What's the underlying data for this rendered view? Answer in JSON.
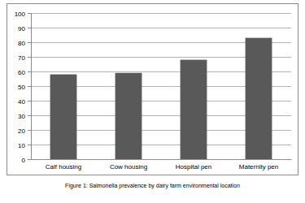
{
  "chart_data": {
    "type": "bar",
    "title": "Figure 1: Salmonella prevalence by dairy farm environmental location",
    "categories": [
      "Calf housing",
      "Cow housing",
      "Hospital pen",
      "Maternity pen"
    ],
    "values": [
      58,
      59,
      68,
      83
    ],
    "color": "#595959",
    "ylim": [
      0,
      100
    ],
    "yticks": [
      0,
      10,
      20,
      30,
      40,
      50,
      60,
      70,
      80,
      90,
      100
    ],
    "grid": true
  }
}
